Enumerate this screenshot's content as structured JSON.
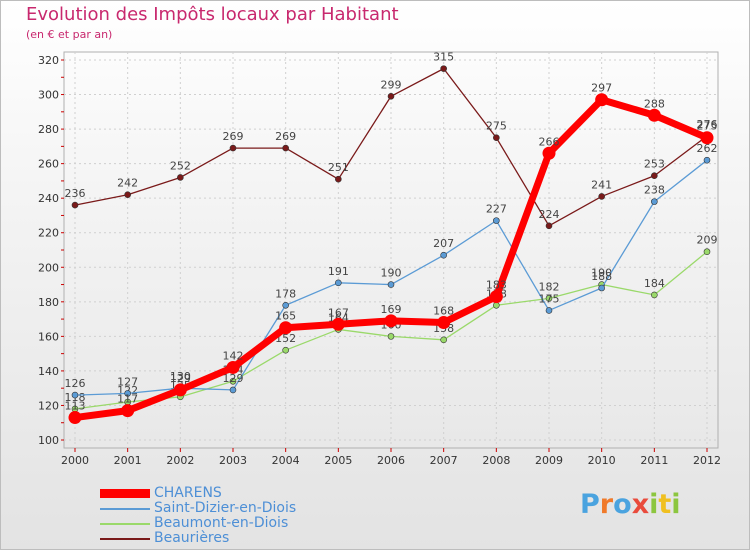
{
  "chart_data": {
    "type": "line",
    "title": "Evolution des Impôts locaux par Habitant",
    "subtitle": "(en € et par an)",
    "xlabel": "",
    "ylabel": "",
    "x": [
      "2000",
      "2001",
      "2002",
      "2003",
      "2004",
      "2005",
      "2006",
      "2007",
      "2008",
      "2009",
      "2010",
      "2011",
      "2012"
    ],
    "ylim": [
      100,
      320
    ],
    "yticks": [
      100,
      120,
      140,
      160,
      180,
      200,
      220,
      240,
      260,
      280,
      300,
      320
    ],
    "grid": true,
    "legend_position": "bottom-left",
    "series": [
      {
        "name": "Beaurières",
        "color": "#7a1a1a",
        "values": [
          236,
          242,
          252,
          269,
          269,
          251,
          299,
          315,
          275,
          224,
          241,
          253,
          276
        ]
      },
      {
        "name": "Beaumont-en-Diois",
        "color": "#9ad96a",
        "values": [
          118,
          122,
          125,
          134,
          152,
          164,
          160,
          158,
          178,
          182,
          190,
          184,
          209
        ]
      },
      {
        "name": "Saint-Dizier-en-Diois",
        "color": "#5b9bd5",
        "values": [
          126,
          127,
          130,
          129,
          178,
          191,
          190,
          207,
          227,
          175,
          188,
          238,
          262
        ]
      },
      {
        "name": "CHARENS",
        "color": "#ff0000",
        "values": [
          113,
          117,
          129,
          142,
          165,
          167,
          169,
          168,
          183,
          266,
          297,
          288,
          275
        ]
      }
    ]
  },
  "legend": {
    "items": [
      {
        "label": "CHARENS",
        "color": "#ff0000"
      },
      {
        "label": "Saint-Dizier-en-Diois",
        "color": "#5b9bd5"
      },
      {
        "label": "Beaumont-en-Diois",
        "color": "#9ad96a"
      },
      {
        "label": "Beaurières",
        "color": "#7a1a1a"
      }
    ]
  },
  "logo": {
    "letters": [
      "P",
      "r",
      "o",
      "x",
      "i",
      "t",
      "i"
    ],
    "colors": [
      "#4aa3df",
      "#f07a2a",
      "#4aa3df",
      "#e94b3c",
      "#8cc63f",
      "#f0c020",
      "#8cc63f"
    ]
  }
}
